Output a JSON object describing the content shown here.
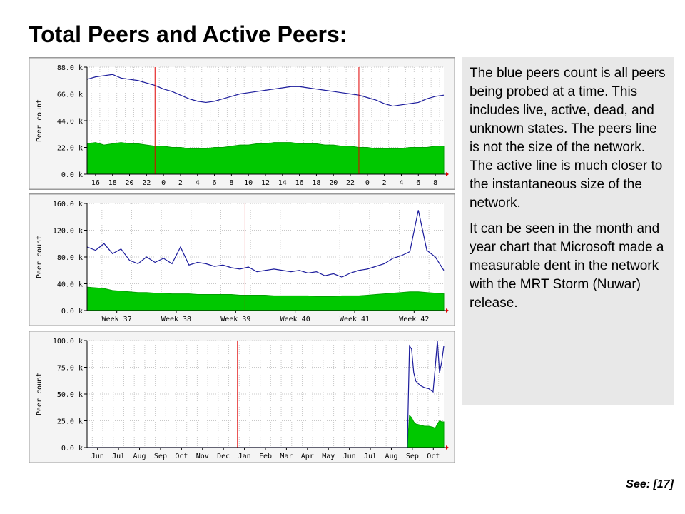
{
  "slide": {
    "title": "Total Peers and Active Peers:",
    "notes": [
      "The blue peers count is all peers being probed at a time.  This includes live, active, dead, and unknown states.  The peers line is not the size of the network.  The active line is much closer to the instantaneous size of the network.",
      "It can be seen in the month and year chart that Microsoft made a measurable dent in the network with the MRT Storm (Nuwar) release."
    ],
    "citation_label": "See:",
    "citation_ref": "[17]"
  },
  "colors": {
    "peers_line": "#1c1c9c",
    "active_fill": "#00c800",
    "marker": "#e00000",
    "grid": "#c8c8c8",
    "panel_border": "#9a9a9a"
  },
  "chart_data": [
    {
      "type": "area",
      "ylabel": "Peer count",
      "ytick_labels": [
        "0.0 k",
        "22.0 k",
        "44.0 k",
        "66.0 k",
        "88.0 k"
      ],
      "ylim": [
        0,
        88
      ],
      "y_unit": "k",
      "xtick_labels": [
        "16",
        "18",
        "20",
        "22",
        "0",
        "2",
        "4",
        "6",
        "8",
        "10",
        "12",
        "14",
        "16",
        "18",
        "20",
        "22",
        "0",
        "2",
        "4",
        "6",
        "8"
      ],
      "grid": true,
      "x_range": [
        0,
        42
      ],
      "markers": [
        8,
        32
      ],
      "series": [
        {
          "style": "line",
          "x": [
            0,
            1,
            2,
            3,
            4,
            5,
            6,
            7,
            8,
            9,
            10,
            11,
            12,
            13,
            14,
            15,
            16,
            17,
            18,
            19,
            20,
            21,
            22,
            23,
            24,
            25,
            26,
            27,
            28,
            29,
            30,
            31,
            32,
            33,
            34,
            35,
            36,
            37,
            38,
            39,
            40,
            41,
            42
          ],
          "values": [
            78,
            80,
            81,
            82,
            79,
            78,
            77,
            75,
            73,
            70,
            68,
            65,
            62,
            60,
            59,
            60,
            62,
            64,
            66,
            67,
            68,
            69,
            70,
            71,
            72,
            72,
            71,
            70,
            69,
            68,
            67,
            66,
            65,
            63,
            61,
            58,
            56,
            57,
            58,
            59,
            62,
            64,
            65
          ]
        },
        {
          "style": "area",
          "x": [
            0,
            1,
            2,
            3,
            4,
            5,
            6,
            7,
            8,
            9,
            10,
            11,
            12,
            13,
            14,
            15,
            16,
            17,
            18,
            19,
            20,
            21,
            22,
            23,
            24,
            25,
            26,
            27,
            28,
            29,
            30,
            31,
            32,
            33,
            34,
            35,
            36,
            37,
            38,
            39,
            40,
            41,
            42
          ],
          "values": [
            25,
            26,
            24,
            25,
            26,
            25,
            25,
            24,
            23,
            23,
            22,
            22,
            21,
            21,
            21,
            22,
            22,
            23,
            24,
            24,
            25,
            25,
            26,
            26,
            26,
            25,
            25,
            25,
            24,
            24,
            23,
            23,
            22,
            22,
            21,
            21,
            21,
            21,
            22,
            22,
            22,
            23,
            23
          ]
        }
      ]
    },
    {
      "type": "area",
      "ylabel": "Peer count",
      "ytick_labels": [
        "0.0 k",
        "40.0 k",
        "80.0 k",
        "120.0 k",
        "160.0 k"
      ],
      "ylim": [
        0,
        160
      ],
      "y_unit": "k",
      "xtick_labels": [
        "Week 37",
        "Week 38",
        "Week 39",
        "Week 40",
        "Week 41",
        "Week 42"
      ],
      "grid": true,
      "x_range": [
        0,
        42
      ],
      "markers": [
        18.6
      ],
      "series": [
        {
          "style": "line",
          "x": [
            0,
            1,
            2,
            3,
            4,
            5,
            6,
            7,
            8,
            9,
            10,
            11,
            12,
            13,
            14,
            15,
            16,
            17,
            18,
            19,
            20,
            21,
            22,
            23,
            24,
            25,
            26,
            27,
            28,
            29,
            30,
            31,
            32,
            33,
            34,
            35,
            36,
            37,
            38,
            39,
            40,
            41,
            42
          ],
          "values": [
            95,
            90,
            100,
            85,
            92,
            75,
            70,
            80,
            72,
            78,
            70,
            95,
            68,
            72,
            70,
            66,
            68,
            64,
            62,
            65,
            58,
            60,
            62,
            60,
            58,
            60,
            56,
            58,
            52,
            55,
            50,
            56,
            60,
            62,
            66,
            70,
            78,
            82,
            88,
            150,
            90,
            80,
            60
          ],
          "note": "approximate daily envelope of a strongly oscillating series"
        },
        {
          "style": "area",
          "x": [
            0,
            1,
            2,
            3,
            4,
            5,
            6,
            7,
            8,
            9,
            10,
            11,
            12,
            13,
            14,
            15,
            16,
            17,
            18,
            19,
            20,
            21,
            22,
            23,
            24,
            25,
            26,
            27,
            28,
            29,
            30,
            31,
            32,
            33,
            34,
            35,
            36,
            37,
            38,
            39,
            40,
            41,
            42
          ],
          "values": [
            35,
            34,
            33,
            30,
            29,
            28,
            27,
            27,
            26,
            26,
            25,
            25,
            25,
            24,
            24,
            24,
            24,
            24,
            23,
            23,
            23,
            23,
            22,
            22,
            22,
            22,
            22,
            21,
            21,
            21,
            22,
            22,
            22,
            23,
            24,
            25,
            26,
            27,
            28,
            28,
            27,
            26,
            25
          ]
        }
      ]
    },
    {
      "type": "area",
      "ylabel": "Peer count",
      "ytick_labels": [
        "0.0 k",
        "25.0 k",
        "50.0 k",
        "75.0 k",
        "100.0 k"
      ],
      "ylim": [
        0,
        100
      ],
      "y_unit": "k",
      "xtick_labels": [
        "Jun",
        "Jul",
        "Aug",
        "Sep",
        "Oct",
        "Nov",
        "Dec",
        "Jan",
        "Feb",
        "Mar",
        "Apr",
        "May",
        "Jun",
        "Jul",
        "Aug",
        "Sep",
        "Oct"
      ],
      "grid": true,
      "x_range": [
        0,
        16.6
      ],
      "markers": [
        7
      ],
      "series": [
        {
          "style": "line",
          "x": [
            0,
            1,
            2,
            3,
            4,
            5,
            6,
            7,
            8,
            9,
            10,
            11,
            12,
            13,
            14,
            14.9,
            15.0,
            15.1,
            15.2,
            15.3,
            15.5,
            15.7,
            15.9,
            16.1,
            16.2,
            16.3,
            16.4,
            16.5,
            16.6
          ],
          "values": [
            0,
            0,
            0,
            0,
            0,
            0,
            0,
            0,
            0,
            0,
            0,
            0,
            0,
            0,
            0,
            0,
            95,
            92,
            70,
            62,
            58,
            56,
            55,
            52,
            75,
            100,
            70,
            80,
            95
          ]
        },
        {
          "style": "area",
          "x": [
            0,
            1,
            2,
            3,
            4,
            5,
            6,
            7,
            8,
            9,
            10,
            11,
            12,
            13,
            14,
            14.9,
            15.0,
            15.1,
            15.2,
            15.3,
            15.5,
            15.7,
            15.9,
            16.1,
            16.2,
            16.3,
            16.4,
            16.5,
            16.6
          ],
          "values": [
            0,
            0,
            0,
            0,
            0,
            0,
            0,
            0,
            0,
            0,
            0,
            0,
            0,
            0,
            0,
            0,
            30,
            28,
            24,
            22,
            21,
            20,
            20,
            19,
            18,
            22,
            25,
            24,
            24
          ]
        }
      ]
    }
  ]
}
